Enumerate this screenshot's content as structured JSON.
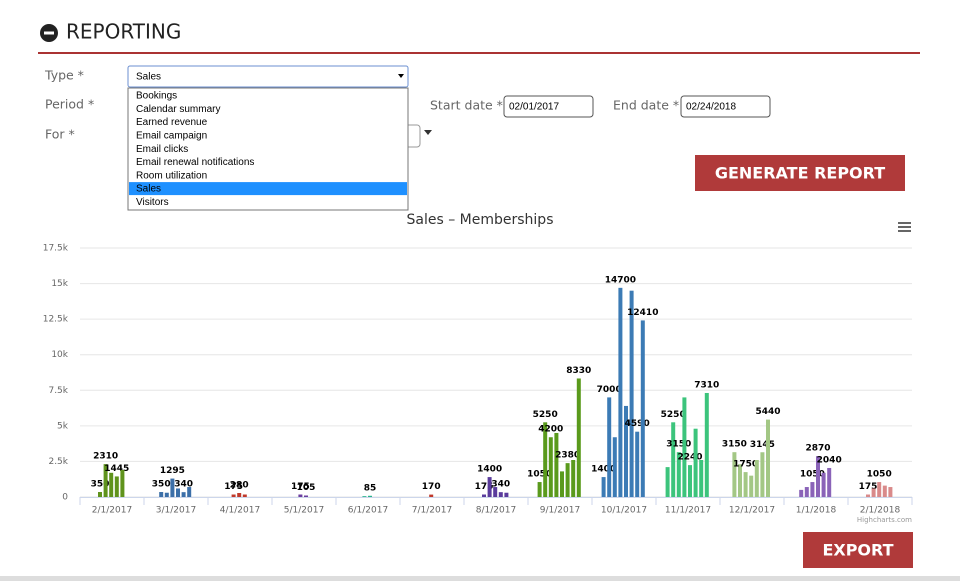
{
  "header": {
    "title": "REPORTING"
  },
  "form": {
    "type": {
      "label": "Type *",
      "value": "Sales",
      "options": [
        "Bookings",
        "Calendar summary",
        "Earned revenue",
        "Email campaign",
        "Email clicks",
        "Email renewal notifications",
        "Room utilization",
        "Sales",
        "Visitors"
      ]
    },
    "period": {
      "label": "Period *"
    },
    "for": {
      "label": "For *"
    },
    "start_date": {
      "label": "Start date *",
      "value": "02/01/2017"
    },
    "end_date": {
      "label": "End date *",
      "value": "02/24/2018"
    },
    "generate_button": "GENERATE REPORT",
    "export_button": "EXPORT"
  },
  "chart_data": {
    "type": "bar",
    "title": "Sales – Memberships",
    "credit": "Highcharts.com",
    "categories": [
      "2/1/2017",
      "3/1/2017",
      "4/1/2017",
      "5/1/2017",
      "6/1/2017",
      "7/1/2017",
      "8/1/2017",
      "9/1/2017",
      "10/1/2017",
      "11/1/2017",
      "12/1/2017",
      "1/1/2018",
      "2/1/2018"
    ],
    "groups": [
      {
        "color": "#5f931c",
        "values": [
          350,
          2310,
          1700,
          1445,
          1900
        ],
        "value_labels": [
          "350",
          "2310",
          null,
          "1445",
          null
        ]
      },
      {
        "color": "#3b6fa8",
        "values": [
          350,
          300,
          1295,
          600,
          340,
          700
        ],
        "value_labels": [
          "350",
          null,
          "1295",
          null,
          "340",
          null
        ]
      },
      {
        "color": "#c0392b",
        "values": [
          175,
          280,
          175
        ],
        "value_labels": [
          "175",
          "280",
          null
        ]
      },
      {
        "color": "#6b3fa0",
        "values": [
          175,
          105
        ],
        "value_labels": [
          "175",
          "105"
        ]
      },
      {
        "color": "#2ab38d",
        "values": [
          60,
          85
        ],
        "value_labels": [
          null,
          "85"
        ]
      },
      {
        "color": "#c0392b",
        "values": [
          170
        ],
        "value_labels": [
          "170"
        ]
      },
      {
        "color": "#5a3b9c",
        "values": [
          175,
          1400,
          700,
          340,
          300
        ],
        "value_labels": [
          "175",
          "1400",
          null,
          "340",
          null
        ]
      },
      {
        "color": "#5a9a1c",
        "values": [
          1050,
          5250,
          4200,
          4500,
          1800,
          2380,
          2600,
          8330
        ],
        "value_labels": [
          "1050",
          "5250",
          "4200",
          null,
          null,
          "2380",
          null,
          "8330"
        ]
      },
      {
        "color": "#3c7bb5",
        "values": [
          1400,
          7000,
          4200,
          14700,
          6400,
          14500,
          4590,
          12410
        ],
        "value_labels": [
          "1400",
          "7000",
          null,
          "14700",
          null,
          null,
          "4590",
          "12410"
        ]
      },
      {
        "color": "#3cc47c",
        "values": [
          2100,
          5250,
          3150,
          7000,
          2240,
          4800,
          2600,
          7310
        ],
        "value_labels": [
          null,
          "5250",
          "3150",
          null,
          "2240",
          null,
          null,
          "7310"
        ]
      },
      {
        "color": "#a3c785",
        "values": [
          3150,
          2300,
          1750,
          1500,
          2600,
          3145,
          5440
        ],
        "value_labels": [
          "3150",
          null,
          "1750",
          null,
          null,
          "3145",
          "5440"
        ]
      },
      {
        "color": "#8a63b8",
        "values": [
          500,
          700,
          1050,
          2870,
          1700,
          2040
        ],
        "value_labels": [
          null,
          null,
          "1050",
          "2870",
          null,
          "2040"
        ]
      },
      {
        "color": "#d98a8a",
        "values": [
          175,
          600,
          1050,
          800,
          700
        ],
        "value_labels": [
          "175",
          null,
          "1050",
          null,
          null
        ]
      }
    ],
    "ylim": [
      0,
      17500
    ],
    "yticks": [
      0,
      {
        "value": 2500,
        "label": "2.5k"
      },
      {
        "value": 5000,
        "label": "5k"
      },
      {
        "value": 7500,
        "label": "7.5k"
      },
      {
        "value": 10000,
        "label": "10k"
      },
      {
        "value": 12500,
        "label": "12.5k"
      },
      {
        "value": 15000,
        "label": "15k"
      },
      {
        "value": 17500,
        "label": "17.5k"
      }
    ],
    "grid": true
  }
}
